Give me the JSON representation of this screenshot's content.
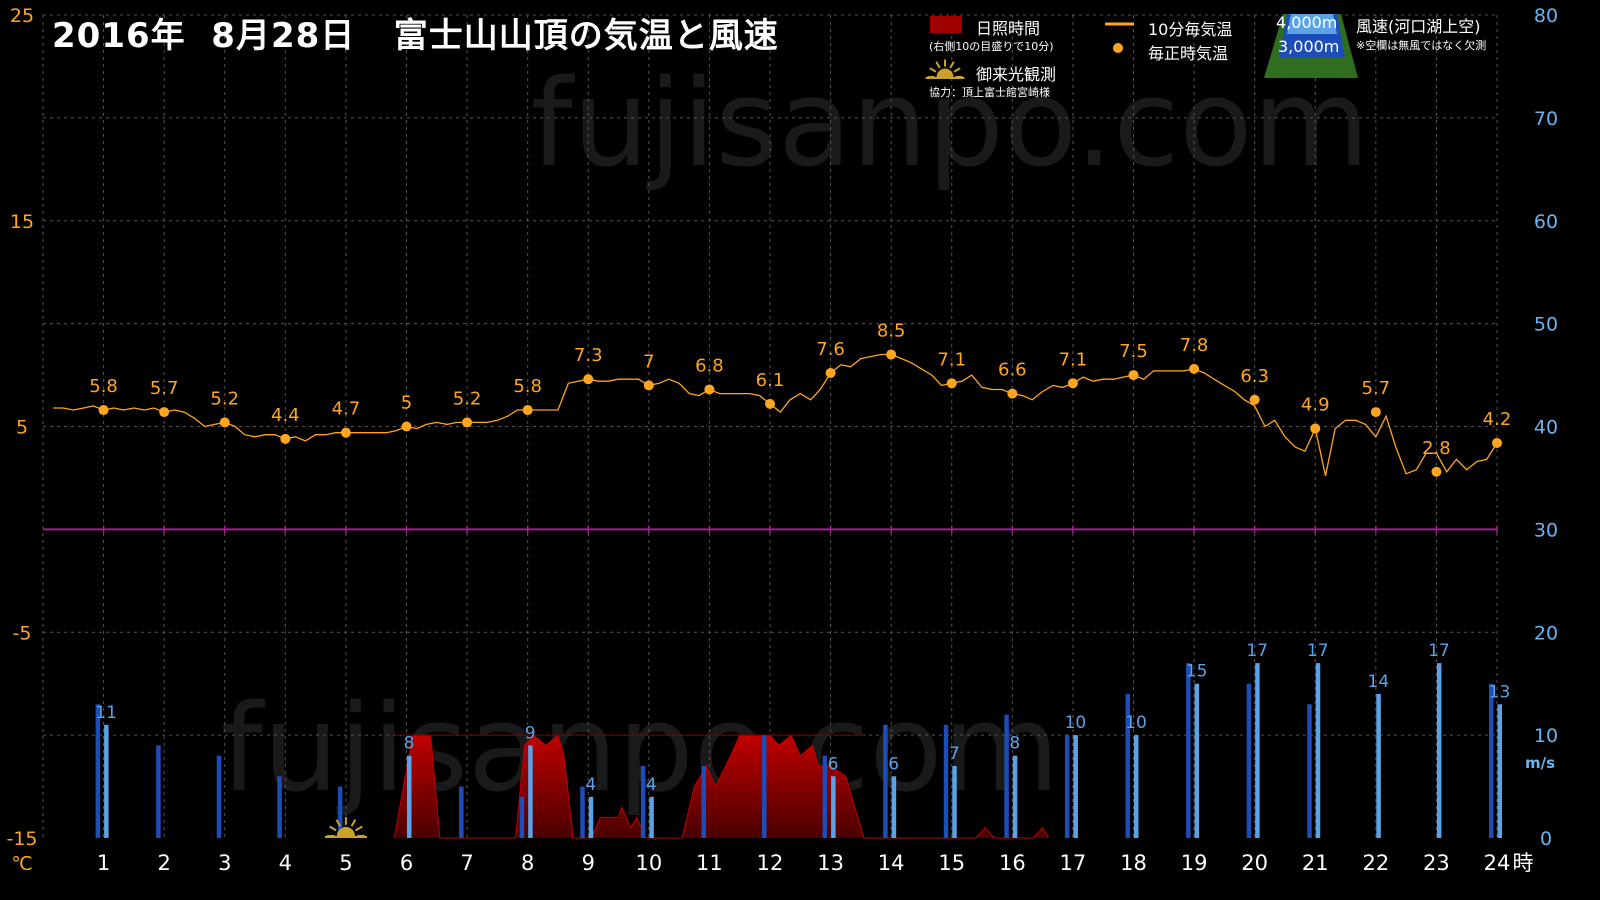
{
  "title": "2016年  8月28日   富士山山頂の気温と風速",
  "watermark": "fujisanpo.com",
  "legend": {
    "sunshine": "日照時間",
    "sunshine_note": "(右側10の目盛りで10分)",
    "temp10": "10分毎気温",
    "temp_hourly": "毎正時気温",
    "sunrise": "御来光観測",
    "credit": "協力：頂上富士館宮崎様",
    "alt4000": "4,000m",
    "alt3000": "3,000m",
    "wind_title": "風速(河口湖上空)",
    "wind_note": "※空欄は無風ではなく欠測"
  },
  "colors": {
    "temp": "#FFA51F",
    "wind_4000": "#5BA3E6",
    "wind_3000": "#1C4DB8",
    "sunshine": "#A00000",
    "zero_line": "#A02090",
    "grid": "#555555",
    "left_axis": "#FFA51F",
    "right_axis": "#6AB4F0"
  },
  "chart_data": {
    "type": "line",
    "x_unit": "時",
    "left_unit": "℃",
    "right_unit": "m/s",
    "left_ylim": [
      -15,
      25
    ],
    "left_ticks": [
      25,
      15,
      5,
      -5,
      -15
    ],
    "right_ylim": [
      0,
      80
    ],
    "right_ticks": [
      80,
      70,
      60,
      50,
      40,
      30,
      20,
      10,
      0
    ],
    "x_ticks": [
      1,
      2,
      3,
      4,
      5,
      6,
      7,
      8,
      9,
      10,
      11,
      12,
      13,
      14,
      15,
      16,
      17,
      18,
      19,
      20,
      21,
      22,
      23,
      24
    ],
    "temperature_10min": [
      [
        0.17,
        5.9
      ],
      [
        0.33,
        5.9
      ],
      [
        0.5,
        5.8
      ],
      [
        0.67,
        5.9
      ],
      [
        0.83,
        6.0
      ],
      [
        1,
        5.8
      ],
      [
        1.17,
        5.9
      ],
      [
        1.33,
        5.8
      ],
      [
        1.5,
        5.9
      ],
      [
        1.67,
        5.8
      ],
      [
        1.83,
        5.9
      ],
      [
        2,
        5.7
      ],
      [
        2.17,
        5.8
      ],
      [
        2.33,
        5.7
      ],
      [
        2.5,
        5.4
      ],
      [
        2.67,
        5.0
      ],
      [
        2.83,
        5.1
      ],
      [
        3,
        5.2
      ],
      [
        3.17,
        5.0
      ],
      [
        3.33,
        4.6
      ],
      [
        3.5,
        4.5
      ],
      [
        3.67,
        4.6
      ],
      [
        3.83,
        4.6
      ],
      [
        4,
        4.4
      ],
      [
        4.17,
        4.5
      ],
      [
        4.33,
        4.3
      ],
      [
        4.5,
        4.6
      ],
      [
        4.67,
        4.6
      ],
      [
        4.83,
        4.7
      ],
      [
        5,
        4.7
      ],
      [
        5.17,
        4.7
      ],
      [
        5.33,
        4.7
      ],
      [
        5.5,
        4.7
      ],
      [
        5.67,
        4.7
      ],
      [
        5.83,
        4.8
      ],
      [
        6,
        5.0
      ],
      [
        6.17,
        4.9
      ],
      [
        6.33,
        5.1
      ],
      [
        6.5,
        5.2
      ],
      [
        6.67,
        5.1
      ],
      [
        6.83,
        5.2
      ],
      [
        7,
        5.2
      ],
      [
        7.17,
        5.2
      ],
      [
        7.33,
        5.2
      ],
      [
        7.5,
        5.3
      ],
      [
        7.67,
        5.5
      ],
      [
        7.83,
        5.8
      ],
      [
        8,
        5.8
      ],
      [
        8.17,
        5.8
      ],
      [
        8.33,
        5.8
      ],
      [
        8.5,
        5.8
      ],
      [
        8.67,
        7.1
      ],
      [
        8.83,
        7.2
      ],
      [
        9,
        7.3
      ],
      [
        9.17,
        7.2
      ],
      [
        9.33,
        7.2
      ],
      [
        9.5,
        7.3
      ],
      [
        9.67,
        7.3
      ],
      [
        9.83,
        7.3
      ],
      [
        10,
        7.0
      ],
      [
        10.17,
        7.1
      ],
      [
        10.33,
        7.3
      ],
      [
        10.5,
        7.1
      ],
      [
        10.67,
        6.6
      ],
      [
        10.83,
        6.5
      ],
      [
        11,
        6.8
      ],
      [
        11.17,
        6.6
      ],
      [
        11.33,
        6.6
      ],
      [
        11.5,
        6.6
      ],
      [
        11.67,
        6.6
      ],
      [
        11.83,
        6.5
      ],
      [
        12,
        6.1
      ],
      [
        12.17,
        5.7
      ],
      [
        12.33,
        6.3
      ],
      [
        12.5,
        6.6
      ],
      [
        12.67,
        6.3
      ],
      [
        12.83,
        6.8
      ],
      [
        13,
        7.6
      ],
      [
        13.17,
        8.0
      ],
      [
        13.33,
        7.9
      ],
      [
        13.5,
        8.3
      ],
      [
        13.67,
        8.4
      ],
      [
        13.83,
        8.5
      ],
      [
        14,
        8.5
      ],
      [
        14.17,
        8.3
      ],
      [
        14.33,
        8.1
      ],
      [
        14.5,
        7.8
      ],
      [
        14.67,
        7.5
      ],
      [
        14.83,
        7.0
      ],
      [
        15,
        7.1
      ],
      [
        15.17,
        7.2
      ],
      [
        15.33,
        7.5
      ],
      [
        15.5,
        6.9
      ],
      [
        15.67,
        6.8
      ],
      [
        15.83,
        6.8
      ],
      [
        16,
        6.6
      ],
      [
        16.17,
        6.5
      ],
      [
        16.33,
        6.3
      ],
      [
        16.5,
        6.7
      ],
      [
        16.67,
        7.0
      ],
      [
        16.83,
        6.9
      ],
      [
        17,
        7.1
      ],
      [
        17.17,
        7.4
      ],
      [
        17.33,
        7.2
      ],
      [
        17.5,
        7.3
      ],
      [
        17.67,
        7.3
      ],
      [
        17.83,
        7.4
      ],
      [
        18,
        7.5
      ],
      [
        18.17,
        7.3
      ],
      [
        18.33,
        7.7
      ],
      [
        18.5,
        7.7
      ],
      [
        18.67,
        7.7
      ],
      [
        18.83,
        7.7
      ],
      [
        19,
        7.8
      ],
      [
        19.17,
        7.6
      ],
      [
        19.33,
        7.3
      ],
      [
        19.5,
        7.0
      ],
      [
        19.67,
        6.7
      ],
      [
        19.83,
        6.3
      ],
      [
        20,
        6.0
      ],
      [
        20.17,
        5.0
      ],
      [
        20.33,
        5.3
      ],
      [
        20.5,
        4.5
      ],
      [
        20.67,
        4.0
      ],
      [
        20.83,
        3.8
      ],
      [
        21,
        4.9
      ],
      [
        21.17,
        2.6
      ],
      [
        21.33,
        4.9
      ],
      [
        21.5,
        5.3
      ],
      [
        21.67,
        5.3
      ],
      [
        21.83,
        5.1
      ],
      [
        22,
        4.5
      ],
      [
        22.17,
        5.5
      ],
      [
        22.33,
        4.0
      ],
      [
        22.5,
        2.7
      ],
      [
        22.67,
        2.9
      ],
      [
        22.83,
        3.7
      ],
      [
        23,
        3.7
      ],
      [
        23.17,
        2.8
      ],
      [
        23.33,
        3.4
      ],
      [
        23.5,
        2.9
      ],
      [
        23.67,
        3.3
      ],
      [
        23.83,
        3.4
      ],
      [
        24,
        4.2
      ]
    ],
    "temperature_hourly": {
      "x": [
        1,
        2,
        3,
        4,
        5,
        6,
        7,
        8,
        9,
        10,
        11,
        12,
        13,
        14,
        15,
        16,
        17,
        18,
        19,
        20,
        21,
        22,
        23,
        24
      ],
      "values": [
        5.8,
        5.7,
        5.2,
        4.4,
        4.7,
        5,
        5.2,
        5.8,
        7.3,
        7,
        6.8,
        6.1,
        7.6,
        8.5,
        7.1,
        6.6,
        7.1,
        7.5,
        7.8,
        6.3,
        4.9,
        5.7,
        2.8,
        4.2
      ]
    },
    "wind_4000m": {
      "x": [
        1,
        2,
        3,
        4,
        5,
        6,
        7,
        8,
        9,
        10,
        11,
        12,
        13,
        14,
        15,
        16,
        17,
        18,
        19,
        20,
        21,
        22,
        23,
        24
      ],
      "values": [
        11,
        null,
        null,
        null,
        null,
        8,
        null,
        9,
        4,
        4,
        null,
        null,
        6,
        6,
        7,
        8,
        10,
        10,
        15,
        17,
        17,
        14,
        17,
        13
      ]
    },
    "wind_3000m": {
      "x": [
        1,
        2,
        3,
        4,
        5,
        6,
        7,
        8,
        9,
        10,
        11,
        12,
        13,
        14,
        15,
        16,
        17,
        18,
        19,
        20,
        21,
        22,
        23,
        24
      ],
      "values": [
        13,
        9,
        8,
        6,
        5,
        null,
        5,
        4,
        5,
        7,
        7,
        10,
        8,
        11,
        11,
        12,
        10,
        14,
        17,
        15,
        13,
        null,
        null,
        15
      ]
    },
    "sunshine_minutes": [
      [
        5.8,
        0
      ],
      [
        5.95,
        5
      ],
      [
        6.1,
        10
      ],
      [
        6.4,
        10
      ],
      [
        6.55,
        0
      ],
      [
        7.8,
        0
      ],
      [
        7.95,
        9
      ],
      [
        8.1,
        10
      ],
      [
        8.3,
        9
      ],
      [
        8.5,
        10
      ],
      [
        8.6,
        8
      ],
      [
        8.75,
        0
      ],
      [
        9.05,
        0
      ],
      [
        9.2,
        2
      ],
      [
        9.5,
        2
      ],
      [
        9.55,
        3
      ],
      [
        9.7,
        1
      ],
      [
        9.8,
        2
      ],
      [
        9.95,
        0
      ],
      [
        10.55,
        0
      ],
      [
        10.75,
        5
      ],
      [
        10.95,
        7
      ],
      [
        11.1,
        5
      ],
      [
        11.35,
        8
      ],
      [
        11.5,
        10
      ],
      [
        11.7,
        10
      ],
      [
        11.8,
        10
      ],
      [
        12,
        10
      ],
      [
        12.15,
        9
      ],
      [
        12.35,
        10
      ],
      [
        12.5,
        8
      ],
      [
        12.7,
        9
      ],
      [
        12.8,
        7
      ],
      [
        13.0,
        7
      ],
      [
        13.25,
        6
      ],
      [
        13.4,
        3
      ],
      [
        13.55,
        0
      ],
      [
        15.4,
        0
      ],
      [
        15.55,
        1
      ],
      [
        15.7,
        0
      ],
      [
        16.35,
        0
      ],
      [
        16.5,
        1
      ],
      [
        16.6,
        0
      ]
    ],
    "sunrise_hour": 5
  }
}
